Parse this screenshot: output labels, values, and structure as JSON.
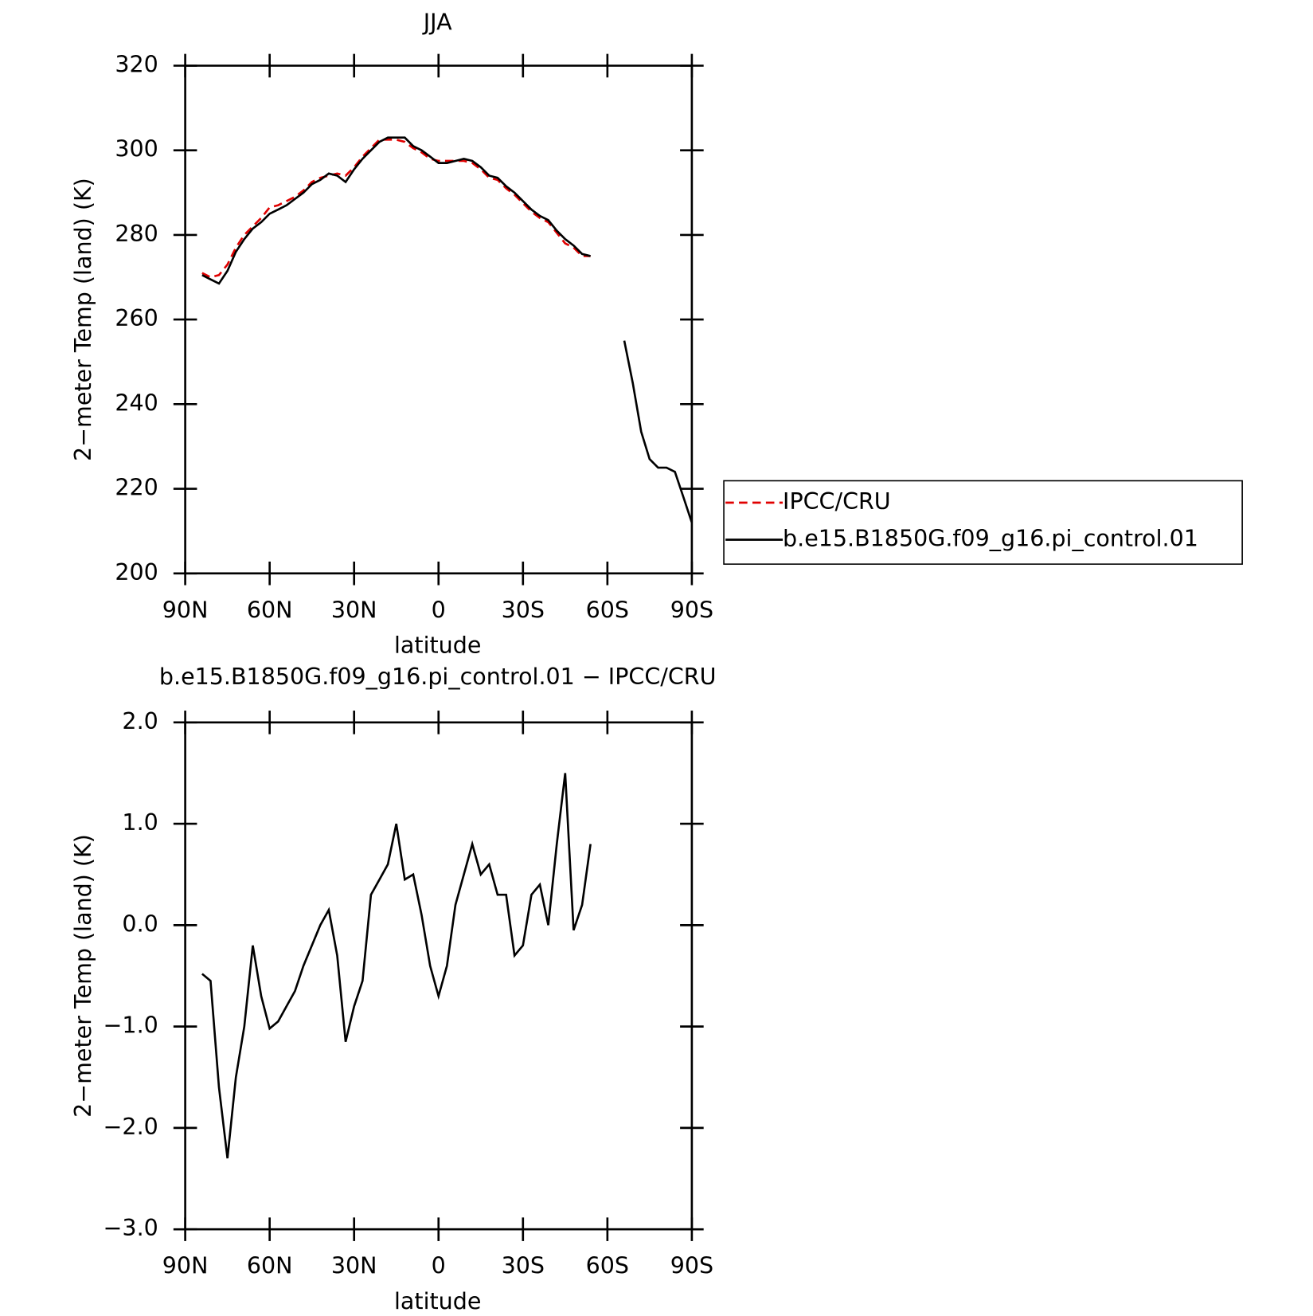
{
  "chart_data": [
    {
      "type": "line",
      "title": "JJA",
      "xlabel": "latitude",
      "ylabel": "2−meter Temp (land) (K)",
      "x": [
        84,
        81,
        78,
        75,
        72,
        69,
        66,
        63,
        60,
        57,
        54,
        51,
        48,
        45,
        42,
        39,
        36,
        33,
        30,
        27,
        24,
        21,
        18,
        15,
        12,
        9,
        6,
        3,
        0,
        -3,
        -6,
        -9,
        -12,
        -15,
        -18,
        -21,
        -24,
        -27,
        -30,
        -33,
        -36,
        -39,
        -42,
        -45,
        -48,
        -51,
        -54,
        -57,
        -60,
        -63,
        -66,
        -69,
        -72,
        -75,
        -78,
        -81,
        -84,
        -87,
        -90
      ],
      "series": [
        {
          "name": "IPCC/CRU",
          "color": "#e00000",
          "dashed": true,
          "values": [
            271,
            270,
            270.5,
            273,
            277,
            280,
            282,
            284,
            286.5,
            287,
            288,
            289,
            290.5,
            292.5,
            293.5,
            294,
            294.5,
            294,
            296,
            298.5,
            300.5,
            302.5,
            302.5,
            302.5,
            302,
            300.5,
            299.5,
            298,
            297.5,
            297.5,
            297.5,
            297.5,
            297,
            295.5,
            293.5,
            293,
            291,
            289.5,
            287.5,
            285.5,
            284,
            283,
            280.5,
            278,
            277,
            275,
            275,
            null,
            null,
            null,
            null,
            null,
            null,
            null,
            null,
            null,
            null,
            null,
            null
          ]
        },
        {
          "name": "b.e15.B1850G.f09_g16.pi_control.01",
          "color": "#000000",
          "dashed": false,
          "values": [
            270.5,
            269.5,
            268.5,
            271.5,
            276,
            279,
            281.5,
            283,
            285,
            286,
            287,
            288.5,
            290,
            292,
            293,
            294.5,
            294,
            292.5,
            295.5,
            298,
            300,
            302,
            303,
            303,
            303,
            301,
            300,
            298.5,
            297,
            297,
            297.5,
            298,
            297.5,
            296,
            294,
            293.5,
            291.5,
            290,
            288,
            286,
            284.5,
            283.5,
            281,
            279,
            277.5,
            275.5,
            275,
            null,
            null,
            null,
            255,
            245,
            233.5,
            227,
            225,
            225,
            224,
            218,
            212
          ]
        }
      ],
      "xlim": [
        90,
        -90
      ],
      "xticks": [
        {
          "value": 90,
          "label": "90N"
        },
        {
          "value": 60,
          "label": "60N"
        },
        {
          "value": 30,
          "label": "30N"
        },
        0,
        {
          "value": -30,
          "label": "30S"
        },
        {
          "value": -60,
          "label": "60S"
        },
        {
          "value": -90,
          "label": "90S"
        }
      ],
      "ylim": [
        200,
        320
      ],
      "yticks": [
        200,
        220,
        240,
        260,
        280,
        300,
        320
      ],
      "legend": "right"
    },
    {
      "type": "line",
      "title": "b.e15.B1850G.f09_g16.pi_control.01 − IPCC/CRU",
      "xlabel": "latitude",
      "ylabel": "2−meter Temp (land) (K)",
      "x": [
        84,
        81,
        78,
        75,
        72,
        69,
        66,
        63,
        60,
        57,
        54,
        51,
        48,
        45,
        42,
        39,
        36,
        33,
        30,
        27,
        24,
        21,
        18,
        15,
        12,
        9,
        6,
        3,
        0,
        -3,
        -6,
        -9,
        -12,
        -15,
        -18,
        -21,
        -24,
        -27,
        -30,
        -33,
        -36,
        -39,
        -42,
        -45,
        -48,
        -51,
        -54
      ],
      "series": [
        {
          "color": "#000000",
          "dashed": false,
          "values": [
            -0.48,
            -0.55,
            -1.6,
            -2.3,
            -1.5,
            -1.0,
            -0.2,
            -0.7,
            -1.02,
            -0.95,
            -0.8,
            -0.65,
            -0.4,
            -0.2,
            0.0,
            0.15,
            -0.3,
            -1.15,
            -0.8,
            -0.55,
            0.3,
            0.45,
            0.6,
            1.0,
            0.45,
            0.5,
            0.1,
            -0.4,
            -0.7,
            -0.4,
            0.2,
            0.5,
            0.8,
            0.5,
            0.6,
            0.3,
            0.3,
            -0.3,
            -0.2,
            0.3,
            0.4,
            0.0,
            0.8,
            1.5,
            -0.05,
            0.2,
            0.8
          ]
        }
      ],
      "xlim": [
        90,
        -90
      ],
      "xticks": [
        {
          "value": 90,
          "label": "90N"
        },
        {
          "value": 60,
          "label": "60N"
        },
        {
          "value": 30,
          "label": "30N"
        },
        0,
        {
          "value": -30,
          "label": "30S"
        },
        {
          "value": -60,
          "label": "60S"
        },
        {
          "value": -90,
          "label": "90S"
        }
      ],
      "ylim": [
        -3,
        2
      ],
      "yticks": [
        {
          "value": -3,
          "label": "−3.0"
        },
        {
          "value": -2,
          "label": "−2.0"
        },
        {
          "value": -1,
          "label": "−1.0"
        },
        {
          "value": 0,
          "label": "0.0"
        },
        {
          "value": 1,
          "label": "1.0"
        },
        {
          "value": 2,
          "label": "2.0"
        }
      ]
    }
  ]
}
